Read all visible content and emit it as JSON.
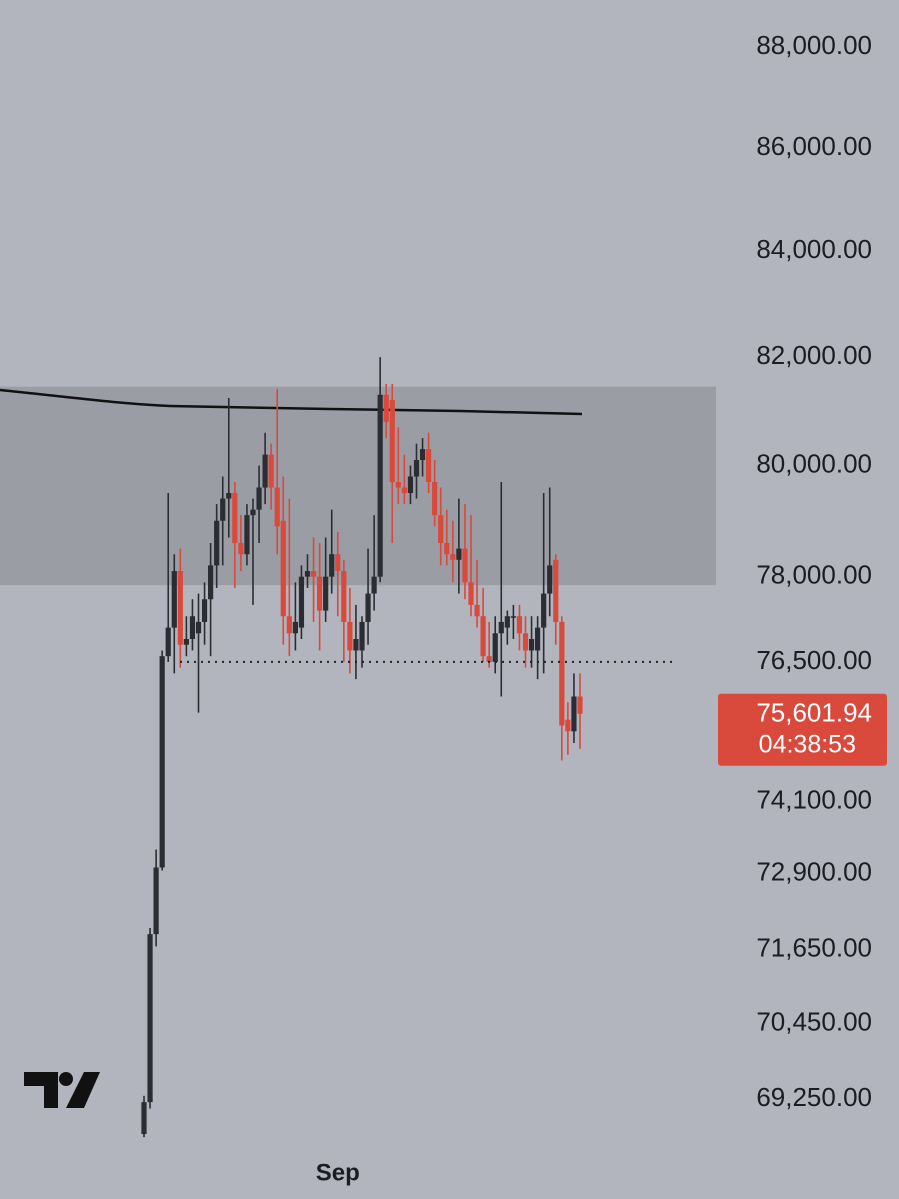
{
  "chart_data": {
    "type": "candlestick",
    "log_scale": true,
    "categories": [
      null,
      null,
      null,
      null,
      null,
      null,
      null,
      null,
      null,
      null,
      null,
      null,
      null,
      null,
      null,
      null,
      null,
      null,
      null,
      null,
      null,
      null,
      null,
      null,
      null,
      null,
      null,
      null,
      null,
      null,
      null,
      null,
      "Sep",
      null,
      null,
      null,
      null,
      null,
      null,
      null,
      null,
      null,
      null,
      null,
      null,
      null,
      null,
      null,
      null,
      null,
      null,
      null,
      null,
      null,
      null,
      null,
      null,
      null,
      null,
      null,
      null,
      null,
      null,
      null,
      null,
      null,
      null,
      null,
      null,
      null,
      null,
      null,
      null
    ],
    "open": [
      68700,
      69200,
      71900,
      73000,
      76600,
      77100,
      78100,
      76800,
      76900,
      77000,
      77200,
      77600,
      78200,
      79000,
      79400,
      79500,
      78600,
      78400,
      79100,
      79200,
      79600,
      80200,
      79600,
      79000,
      77300,
      77000,
      77100,
      78000,
      78100,
      78000,
      77400,
      78000,
      78400,
      78100,
      77200,
      76700,
      76700,
      77200,
      77700,
      78000,
      81300,
      81200,
      79700,
      79600,
      79500,
      79800,
      80100,
      80300,
      79700,
      79100,
      78600,
      78400,
      78300,
      78500,
      77900,
      77500,
      77300,
      76600,
      76500,
      77000,
      77100,
      77300,
      77300,
      77000,
      76700,
      76700,
      77100,
      77700,
      78300,
      77200,
      75500,
      75300,
      75900
    ],
    "high": [
      69300,
      72000,
      73300,
      76700,
      79500,
      78400,
      78500,
      77300,
      77600,
      77700,
      77900,
      78600,
      79300,
      79800,
      81240,
      79700,
      79100,
      79300,
      79400,
      80000,
      80600,
      80400,
      81400,
      79800,
      79400,
      77900,
      78200,
      78400,
      78700,
      78600,
      78700,
      79200,
      78800,
      78300,
      77800,
      77500,
      77300,
      78500,
      79100,
      82000,
      81500,
      81500,
      80700,
      80200,
      80000,
      80400,
      80500,
      80600,
      80100,
      79600,
      79200,
      79000,
      79400,
      79300,
      79100,
      78300,
      77800,
      77200,
      77300,
      79700,
      77400,
      77500,
      77500,
      77300,
      77300,
      77300,
      79500,
      79600,
      78400,
      77300,
      75800,
      76300,
      76300
    ],
    "low": [
      68650,
      69100,
      71700,
      72950,
      76500,
      76300,
      76400,
      76600,
      76700,
      75620,
      76800,
      76600,
      77800,
      78200,
      78700,
      77800,
      78100,
      78200,
      77500,
      78600,
      79300,
      79200,
      78400,
      76800,
      76600,
      76700,
      76900,
      77800,
      77200,
      76700,
      77200,
      77700,
      77300,
      76500,
      76300,
      76200,
      76400,
      76800,
      77400,
      77900,
      80500,
      78600,
      79300,
      79300,
      79300,
      79400,
      79800,
      79500,
      78900,
      78200,
      78200,
      77900,
      77700,
      77600,
      77300,
      77100,
      76500,
      76400,
      76300,
      75900,
      76800,
      76900,
      76700,
      76400,
      76400,
      76200,
      76300,
      77300,
      76800,
      74800,
      74900,
      75100,
      75000
    ],
    "close": [
      69200,
      71900,
      73000,
      76600,
      77100,
      78100,
      76800,
      76900,
      77300,
      77200,
      77600,
      78200,
      79000,
      79400,
      79500,
      78600,
      78400,
      79100,
      79200,
      79600,
      80200,
      79600,
      78900,
      77300,
      77000,
      77200,
      78000,
      78100,
      78000,
      77400,
      78000,
      78400,
      78100,
      77200,
      76700,
      76900,
      77200,
      77700,
      78000,
      81300,
      80800,
      79700,
      79600,
      79500,
      79800,
      80100,
      80300,
      79700,
      79100,
      78600,
      78400,
      78300,
      78500,
      77900,
      77500,
      77300,
      76600,
      76500,
      77000,
      77200,
      77300,
      77300,
      77000,
      76700,
      76900,
      77100,
      77700,
      78200,
      77200,
      75400,
      75300,
      75900,
      75601.94
    ],
    "up_color": "#2b2d33",
    "down_color": "#d9493c",
    "ylim": [
      68450,
      88950
    ],
    "yticks": [
      {
        "value": 88000,
        "label": "88,000.00"
      },
      {
        "value": 86000,
        "label": "86,000.00"
      },
      {
        "value": 84000,
        "label": "84,000.00"
      },
      {
        "value": 82000,
        "label": "82,000.00"
      },
      {
        "value": 80000,
        "label": "80,000.00"
      },
      {
        "value": 78000,
        "label": "78,000.00"
      },
      {
        "value": 76500,
        "label": "76,500.00"
      },
      {
        "value": 74100,
        "label": "74,100.00"
      },
      {
        "value": 72900,
        "label": "72,900.00"
      },
      {
        "value": 71650,
        "label": "71,650.00"
      },
      {
        "value": 70450,
        "label": "70,450.00"
      },
      {
        "value": 69250,
        "label": "69,250.00"
      }
    ],
    "zone": [
      77850,
      81450
    ],
    "reference_line": 76500,
    "last_price": {
      "value": 75601.94,
      "label": "75,601.94"
    },
    "countdown": "04:38:53"
  }
}
